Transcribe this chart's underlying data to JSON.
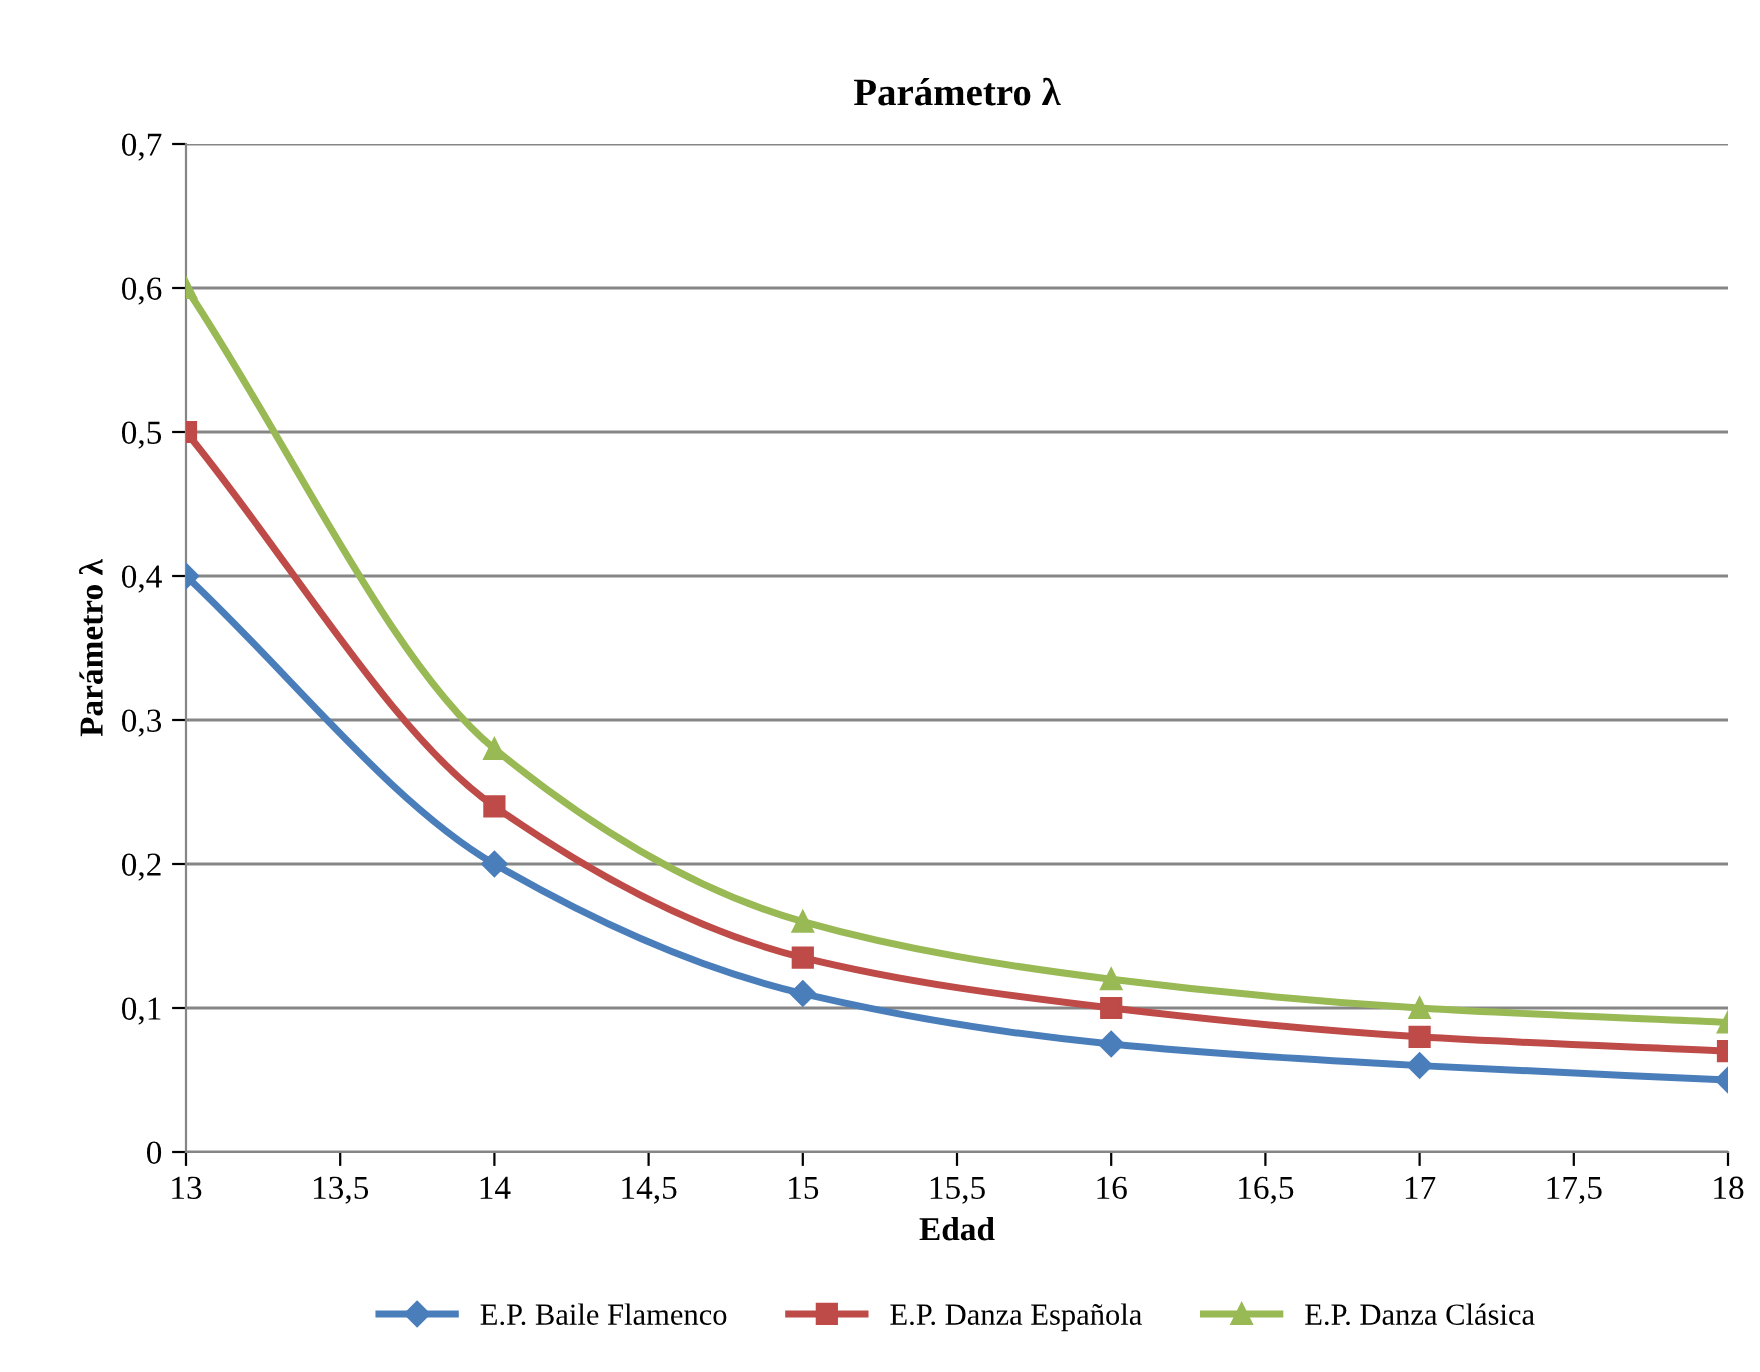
{
  "chart_data": {
    "type": "line",
    "title": "Parámetro λ",
    "xlabel": "Edad",
    "ylabel": "Parámetro λ",
    "x": [
      13,
      14,
      15,
      16,
      17,
      18
    ],
    "series": [
      {
        "name": "E.P. Baile Flamenco",
        "color": "#4a7ebb",
        "marker": "diamond",
        "values": [
          0.4,
          0.2,
          0.11,
          0.075,
          0.06,
          0.05
        ]
      },
      {
        "name": "E.P. Danza Española",
        "color": "#be4b48",
        "marker": "square",
        "values": [
          0.5,
          0.24,
          0.135,
          0.1,
          0.08,
          0.07
        ]
      },
      {
        "name": "E.P. Danza Clásica",
        "color": "#98b954",
        "marker": "triangle",
        "values": [
          0.6,
          0.28,
          0.16,
          0.12,
          0.1,
          0.09
        ]
      }
    ],
    "xlim": [
      13,
      18
    ],
    "xticks": [
      13,
      {
        "value": 13.5,
        "label": "13,5"
      },
      14,
      {
        "value": 14.5,
        "label": "14,5"
      },
      15,
      {
        "value": 15.5,
        "label": "15,5"
      },
      16,
      {
        "value": 16.5,
        "label": "16,5"
      },
      17,
      {
        "value": 17.5,
        "label": "17,5"
      },
      18
    ],
    "ylim": [
      0,
      0.7
    ],
    "yticks": [
      0,
      {
        "value": 0.1,
        "label": "0,1"
      },
      {
        "value": 0.2,
        "label": "0,2"
      },
      {
        "value": 0.3,
        "label": "0,3"
      },
      {
        "value": 0.4,
        "label": "0,4"
      },
      {
        "value": 0.5,
        "label": "0,5"
      },
      {
        "value": 0.6,
        "label": "0,6"
      },
      {
        "value": 0.7,
        "label": "0,7"
      }
    ],
    "grid": "y",
    "legend": "bottom",
    "line_style": "solid"
  }
}
